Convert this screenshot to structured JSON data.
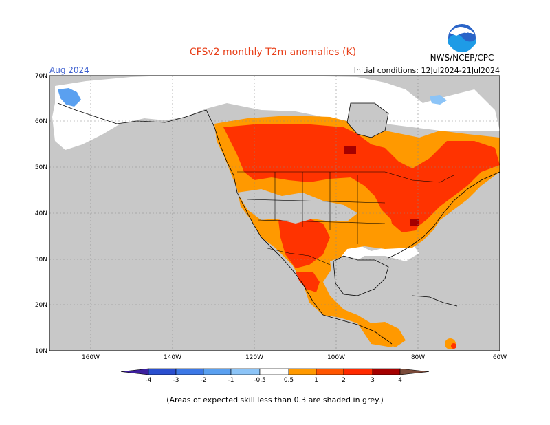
{
  "header": {
    "title": "CFSv2 monthly T2m anomalies (K)",
    "month": "Aug 2024",
    "source": "NWS/NCEP/CPC",
    "init_conditions": "Initial conditions: 12Jul2024-21Jul2024",
    "logo_text": "NOAA"
  },
  "map": {
    "region": "North America",
    "lat_labels": [
      "70N",
      "60N",
      "50N",
      "40N",
      "30N",
      "20N",
      "10N"
    ],
    "lon_labels": [
      "160W",
      "140W",
      "120W",
      "100W",
      "80W",
      "60W"
    ],
    "lat_range": [
      10,
      70
    ],
    "lon_range": [
      -170,
      -60
    ],
    "grid": "dashed"
  },
  "colorbar": {
    "tick_labels": [
      "-4",
      "-3",
      "-2",
      "-1",
      "-0.5",
      "0.5",
      "1",
      "2",
      "3",
      "4"
    ],
    "colors": [
      "#3d1f9e",
      "#2a4fcf",
      "#3c78e6",
      "#5aa0f0",
      "#8cc4f7",
      "#ffffff",
      "#ff9900",
      "#ff5500",
      "#ff2a00",
      "#a50000",
      "#c8968a",
      "#7a4a3a"
    ]
  },
  "footnote": "(Areas of expected skill less than 0.3 are shaded in grey.)",
  "legend_colors": {
    "grey_low_skill": "#c8c8c8",
    "white_near_normal": "#ffffff",
    "orange_0p5_1": "#ff9900",
    "red_1_2": "#ff3300",
    "darkred_2_3": "#a50000",
    "blue_neg": "#5aa0f0"
  }
}
